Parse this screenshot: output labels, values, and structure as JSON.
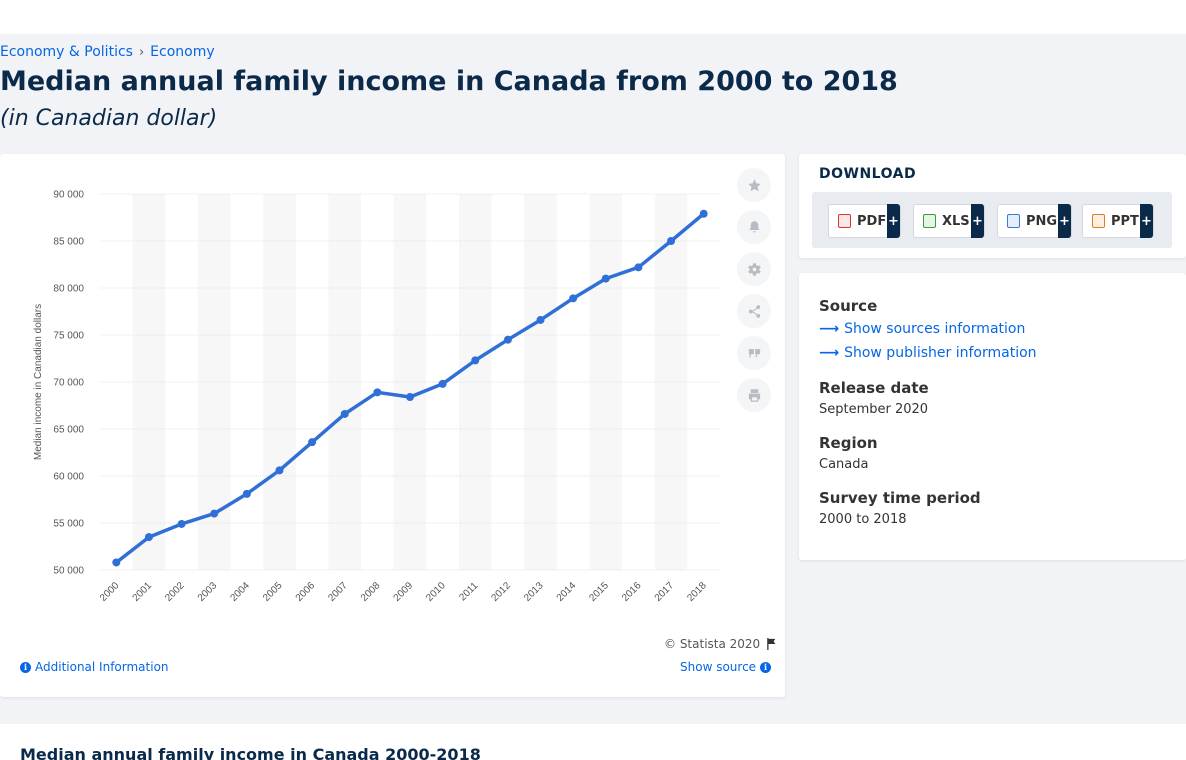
{
  "breadcrumb": {
    "items": [
      "Economy & Politics",
      "Economy"
    ],
    "separator": "›"
  },
  "header": {
    "title": "Median annual family income in Canada from 2000 to 2018",
    "subtitle": "(in Canadian dollar)"
  },
  "chart_data": {
    "type": "line",
    "categories": [
      "2000",
      "2001",
      "2002",
      "2003",
      "2004",
      "2005",
      "2006",
      "2007",
      "2008",
      "2009",
      "2010",
      "2011",
      "2012",
      "2013",
      "2014",
      "2015",
      "2016",
      "2017",
      "2018"
    ],
    "series": [
      {
        "values": [
          50800,
          53500,
          54900,
          56000,
          58100,
          60600,
          63600,
          66600,
          68900,
          68400,
          69800,
          72300,
          74500,
          76600,
          78900,
          81000,
          82200,
          85000,
          87900
        ]
      }
    ],
    "ylabel": "Median income in Canadian dollars",
    "ylim": [
      50000,
      90000
    ],
    "yticks": [
      50000,
      55000,
      60000,
      65000,
      70000,
      75000,
      80000,
      85000,
      90000
    ],
    "ytick_labels": [
      "50 000",
      "55 000",
      "60 000",
      "65 000",
      "70 000",
      "75 000",
      "80 000",
      "85 000",
      "90 000"
    ],
    "grid": true,
    "line_color": "#2f6fd6"
  },
  "chart_footer": {
    "copyright": "© Statista 2020",
    "additional_info": "Additional Information",
    "show_source": "Show source"
  },
  "toolbar": {
    "buttons": [
      "star-icon",
      "bell-icon",
      "gear-icon",
      "share-icon",
      "quote-icon",
      "print-icon"
    ]
  },
  "download": {
    "title": "DOWNLOAD",
    "formats": [
      {
        "label": "PDF",
        "color": "#e0312f"
      },
      {
        "label": "XLS",
        "color": "#3b9b3b"
      },
      {
        "label": "PNG",
        "color": "#3b7bd6"
      },
      {
        "label": "PPT",
        "color": "#e07b1f"
      }
    ],
    "plus": "+"
  },
  "info": {
    "source_label": "Source",
    "show_sources": "Show sources information",
    "show_publisher": "Show publisher information",
    "release_label": "Release date",
    "release_value": "September 2020",
    "region_label": "Region",
    "region_value": "Canada",
    "period_label": "Survey time period",
    "period_value": "2000 to 2018"
  },
  "bottom": {
    "title": "Median annual family income in Canada 2000-2018"
  }
}
